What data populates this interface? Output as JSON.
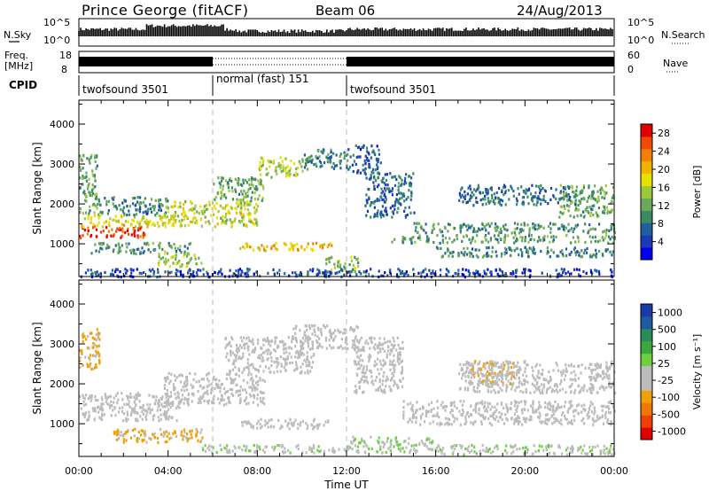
{
  "header": {
    "station": "Prince George (fitACF)",
    "beam": "Beam 06",
    "date": "24/Aug/2013"
  },
  "noise_panel": {
    "left_label": "N.Sky",
    "left_ticks": [
      "10^5",
      "10^0"
    ],
    "right_label": "N.Search",
    "right_ticks": [
      "10^5",
      "10^0"
    ]
  },
  "freq_panel": {
    "left_label_1": "Freq.",
    "left_label_2": "[MHz]",
    "left_ticks": [
      "18",
      "8"
    ],
    "right_label": "Nave",
    "right_ticks": [
      "60",
      "0"
    ]
  },
  "cpid": {
    "label": "CPID",
    "segments": [
      {
        "start_h": 0,
        "end_h": 6,
        "name": "twofsound 3501"
      },
      {
        "start_h": 6,
        "end_h": 12,
        "name": "normal (fast) 151"
      },
      {
        "start_h": 12,
        "end_h": 24,
        "name": "twofsound 3501"
      }
    ]
  },
  "power_colorbar": {
    "label": "Power [dB]",
    "ticks": [
      "4",
      "8",
      "12",
      "16",
      "20",
      "24",
      "28"
    ],
    "colors": [
      "#0000ee",
      "#1a3ab8",
      "#2060a0",
      "#3c8a64",
      "#6aa85a",
      "#9cc83c",
      "#e8e000",
      "#f0b400",
      "#f08000",
      "#ee4a00",
      "#e00000"
    ]
  },
  "velocity_colorbar": {
    "label": "Velocity [m s⁻¹]",
    "ticks": [
      "1000",
      "500",
      "100",
      "25",
      "-25",
      "-100",
      "-500",
      "-1000"
    ],
    "colors": [
      "#1a3aa8",
      "#1e5aa0",
      "#2a8a5a",
      "#3aa83a",
      "#6cd040",
      "#bcbcbc",
      "#bcbcbc",
      "#f0a000",
      "#f07800",
      "#f04000",
      "#e00000"
    ]
  },
  "chart_data": {
    "type": "heatmap",
    "xlabel": "Time UT",
    "ylabel": "Slant Range [km]",
    "xlim": [
      0,
      24
    ],
    "ylim": [
      180,
      4600
    ],
    "x_ticks": [
      "00:00",
      "04:00",
      "08:00",
      "12:00",
      "16:00",
      "20:00",
      "00:00"
    ],
    "y_ticks": [
      1000,
      2000,
      3000,
      4000
    ],
    "mode_boundaries_h": [
      6,
      12
    ],
    "panels": [
      {
        "quantity": "Power",
        "units": "dB",
        "range": [
          0,
          30
        ],
        "bands": [
          {
            "t0": 0.0,
            "t1": 3.0,
            "r0": 1180,
            "r1": 1450,
            "v": 27
          },
          {
            "t0": 0.0,
            "t1": 4.3,
            "r0": 1450,
            "r1": 1750,
            "v": 18
          },
          {
            "t0": 0.0,
            "t1": 0.8,
            "r0": 1750,
            "r1": 3300,
            "v": 12
          },
          {
            "t0": 0.8,
            "t1": 4.0,
            "r0": 1750,
            "r1": 2200,
            "v": 9
          },
          {
            "t0": 3.8,
            "t1": 8.0,
            "r0": 1450,
            "r1": 2100,
            "v": 16
          },
          {
            "t0": 6.0,
            "t1": 8.3,
            "r0": 2100,
            "r1": 2700,
            "v": 12
          },
          {
            "t0": 8.0,
            "t1": 10.0,
            "r0": 2700,
            "r1": 3200,
            "v": 15
          },
          {
            "t0": 10.0,
            "t1": 12.2,
            "r0": 2900,
            "r1": 3400,
            "v": 9
          },
          {
            "t0": 0.5,
            "t1": 5.0,
            "r0": 780,
            "r1": 1050,
            "v": 10
          },
          {
            "t0": 3.5,
            "t1": 5.5,
            "r0": 450,
            "r1": 800,
            "v": 14
          },
          {
            "t0": 7.2,
            "t1": 11.4,
            "r0": 850,
            "r1": 1050,
            "v": 20
          },
          {
            "t0": 11.0,
            "t1": 12.5,
            "r0": 300,
            "r1": 700,
            "v": 14
          },
          {
            "t0": 12.2,
            "t1": 13.5,
            "r0": 2800,
            "r1": 3500,
            "v": 6
          },
          {
            "t0": 12.8,
            "t1": 15.0,
            "r0": 1700,
            "r1": 2800,
            "v": 7
          },
          {
            "t0": 14.0,
            "t1": 24.0,
            "r0": 1050,
            "r1": 1250,
            "v": 11
          },
          {
            "t0": 15.0,
            "t1": 24.0,
            "r0": 1300,
            "r1": 1550,
            "v": 10
          },
          {
            "t0": 16.0,
            "t1": 24.0,
            "r0": 700,
            "r1": 950,
            "v": 9
          },
          {
            "t0": 17.0,
            "t1": 22.0,
            "r0": 2000,
            "r1": 2500,
            "v": 7
          },
          {
            "t0": 21.5,
            "t1": 24.0,
            "r0": 1700,
            "r1": 2500,
            "v": 12
          },
          {
            "t0": 0.0,
            "t1": 24.0,
            "r0": 200,
            "r1": 400,
            "v": 5
          }
        ]
      },
      {
        "quantity": "Velocity",
        "units": "m s^-1",
        "range": [
          -1000,
          1000
        ],
        "bands": [
          {
            "t0": 0.0,
            "t1": 0.9,
            "r0": 2400,
            "r1": 3400,
            "v": -300
          },
          {
            "t0": 0.0,
            "t1": 4.5,
            "r0": 1100,
            "r1": 1800,
            "v": 0
          },
          {
            "t0": 3.8,
            "t1": 8.3,
            "r0": 1500,
            "r1": 2300,
            "v": 0
          },
          {
            "t0": 6.5,
            "t1": 10.5,
            "r0": 2300,
            "r1": 3200,
            "v": 0
          },
          {
            "t0": 9.5,
            "t1": 12.5,
            "r0": 2900,
            "r1": 3500,
            "v": 0
          },
          {
            "t0": 7.2,
            "t1": 11.3,
            "r0": 900,
            "r1": 1150,
            "v": 0
          },
          {
            "t0": 1.5,
            "t1": 5.5,
            "r0": 550,
            "r1": 900,
            "v": -300
          },
          {
            "t0": 12.0,
            "t1": 16.0,
            "r0": 300,
            "r1": 700,
            "v": 80
          },
          {
            "t0": 5.5,
            "t1": 12.0,
            "r0": 300,
            "r1": 500,
            "v": 60
          },
          {
            "t0": 12.3,
            "t1": 14.5,
            "r0": 1800,
            "r1": 3200,
            "v": 0
          },
          {
            "t0": 14.5,
            "t1": 24.0,
            "r0": 1000,
            "r1": 1600,
            "v": 0
          },
          {
            "t0": 17.0,
            "t1": 24.0,
            "r0": 1800,
            "r1": 2600,
            "v": 0
          },
          {
            "t0": 17.5,
            "t1": 19.5,
            "r0": 2000,
            "r1": 2600,
            "v": -250
          },
          {
            "t0": 16.0,
            "t1": 24.0,
            "r0": 250,
            "r1": 500,
            "v": 60
          }
        ]
      }
    ]
  }
}
